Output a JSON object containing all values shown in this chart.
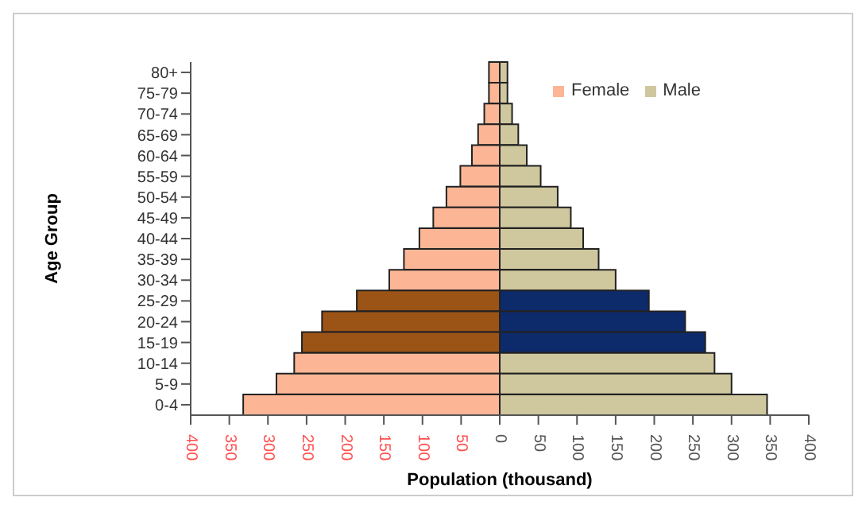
{
  "chart_data": {
    "type": "bar",
    "orientation": "horizontal",
    "stacked": true,
    "xlabel": "Population (thousand)",
    "ylabel": "Age Group",
    "categories": [
      "80+",
      "75-79",
      "70-74",
      "65-69",
      "60-64",
      "55-59",
      "50-54",
      "45-49",
      "40-44",
      "35-39",
      "30-34",
      "25-29",
      "20-24",
      "15-19",
      "10-14",
      "5-9",
      "0-4"
    ],
    "series": [
      {
        "name": "Female",
        "color": "#fcb695",
        "colors": [
          "#fcb695",
          "#fcb695",
          "#fcb695",
          "#fcb695",
          "#fcb695",
          "#fcb695",
          "#fcb695",
          "#fcb695",
          "#fcb695",
          "#fcb695",
          "#fcb695",
          "#9c5416",
          "#9c5416",
          "#9c5416",
          "#fcb695",
          "#fcb695",
          "#fcb695"
        ],
        "values": [
          -14,
          -14,
          -20,
          -28,
          -36,
          -51,
          -69,
          -86,
          -104,
          -124,
          -143,
          -185,
          -230,
          -256,
          -266,
          -289,
          -332
        ]
      },
      {
        "name": "Male",
        "color": "#cfc79e",
        "colors": [
          "#cfc79e",
          "#cfc79e",
          "#cfc79e",
          "#cfc79e",
          "#cfc79e",
          "#cfc79e",
          "#cfc79e",
          "#cfc79e",
          "#cfc79e",
          "#cfc79e",
          "#cfc79e",
          "#0d2b6b",
          "#0d2b6b",
          "#0d2b6b",
          "#cfc79e",
          "#cfc79e",
          "#cfc79e"
        ],
        "values": [
          10,
          10,
          16,
          24,
          35,
          53,
          75,
          92,
          108,
          128,
          150,
          193,
          240,
          266,
          278,
          300,
          346
        ]
      }
    ],
    "xlim": [
      -400,
      400
    ],
    "xticks": [
      {
        "value": -400,
        "label": "400"
      },
      {
        "value": -350,
        "label": "350"
      },
      {
        "value": -300,
        "label": "300"
      },
      {
        "value": -250,
        "label": "250"
      },
      {
        "value": -200,
        "label": "200"
      },
      {
        "value": -150,
        "label": "150"
      },
      {
        "value": -100,
        "label": "100"
      },
      {
        "value": -50,
        "label": "50"
      },
      0,
      50,
      100,
      150,
      200,
      250,
      300,
      350,
      400
    ],
    "legend": "top right"
  }
}
